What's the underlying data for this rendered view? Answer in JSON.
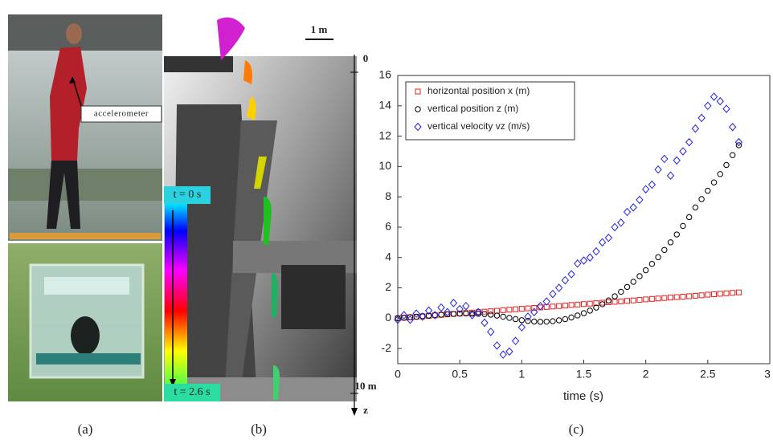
{
  "panels": {
    "a": {
      "annotation": "accelerometer",
      "caption": "(a)"
    },
    "b": {
      "scale_bar": "1 m",
      "depth_top": "0",
      "depth_bottom": "10 m",
      "axis_name": "z",
      "time_start": "t = 0 s",
      "time_end": "t = 2.6 s",
      "caption": "(b)"
    },
    "c": {
      "caption": "(c)"
    }
  },
  "chart_data": {
    "type": "scatter",
    "xlabel": "time (s)",
    "xlim": [
      0,
      3
    ],
    "xticks": [
      0,
      0.5,
      1,
      1.5,
      2,
      2.5,
      3
    ],
    "ylim": [
      -3,
      16
    ],
    "yticks": [
      -2,
      0,
      2,
      4,
      6,
      8,
      10,
      12,
      14,
      16
    ],
    "x": [
      0,
      0.05,
      0.1,
      0.15,
      0.2,
      0.25,
      0.3,
      0.35,
      0.4,
      0.45,
      0.5,
      0.55,
      0.6,
      0.65,
      0.7,
      0.75,
      0.8,
      0.85,
      0.9,
      0.95,
      1,
      1.05,
      1.1,
      1.15,
      1.2,
      1.25,
      1.3,
      1.35,
      1.4,
      1.45,
      1.5,
      1.55,
      1.6,
      1.65,
      1.7,
      1.75,
      1.8,
      1.85,
      1.9,
      1.95,
      2,
      2.05,
      2.1,
      2.15,
      2.2,
      2.25,
      2.3,
      2.35,
      2.4,
      2.45,
      2.5,
      2.55,
      2.6,
      2.65,
      2.7,
      2.75
    ],
    "series": [
      {
        "name": "horizontal position x (m)",
        "color": "#e02020",
        "marker": "square",
        "values": [
          0,
          0.03,
          0.06,
          0.09,
          0.12,
          0.15,
          0.19,
          0.22,
          0.25,
          0.28,
          0.31,
          0.34,
          0.37,
          0.4,
          0.43,
          0.46,
          0.49,
          0.53,
          0.56,
          0.59,
          0.62,
          0.65,
          0.68,
          0.71,
          0.74,
          0.77,
          0.8,
          0.83,
          0.87,
          0.9,
          0.93,
          0.96,
          0.99,
          1.02,
          1.05,
          1.08,
          1.11,
          1.14,
          1.17,
          1.21,
          1.24,
          1.27,
          1.3,
          1.33,
          1.36,
          1.39,
          1.42,
          1.45,
          1.48,
          1.51,
          1.55,
          1.58,
          1.61,
          1.64,
          1.67,
          1.7
        ]
      },
      {
        "name": "vertical position z (m)",
        "color": "#000000",
        "marker": "circle",
        "values": [
          0,
          0.03,
          0.07,
          0.1,
          0.14,
          0.17,
          0.2,
          0.23,
          0.26,
          0.28,
          0.3,
          0.31,
          0.3,
          0.29,
          0.27,
          0.23,
          0.17,
          0.1,
          0.02,
          -0.06,
          -0.13,
          -0.18,
          -0.22,
          -0.24,
          -0.23,
          -0.2,
          -0.14,
          -0.06,
          0.05,
          0.18,
          0.33,
          0.5,
          0.7,
          0.92,
          1.17,
          1.44,
          1.74,
          2.06,
          2.4,
          2.77,
          3.16,
          3.58,
          4.02,
          4.5,
          5,
          5.52,
          6.08,
          6.66,
          7.3,
          7.85,
          8.4,
          8.95,
          9.5,
          10.1,
          10.75,
          11.4
        ]
      },
      {
        "name": "vertical velocity vz (m/s)",
        "color": "#2020e0",
        "marker": "diamond",
        "values": [
          -0.1,
          0.2,
          -0.1,
          0.3,
          0.1,
          0.5,
          0.2,
          0.7,
          0.4,
          1,
          0.6,
          0.8,
          0.2,
          0.4,
          -0.3,
          -0.9,
          -1.8,
          -2.4,
          -2.2,
          -1.5,
          -0.6,
          0.1,
          0.4,
          0.8,
          1.1,
          1.6,
          2,
          2.5,
          2.9,
          3.6,
          3.8,
          4,
          4.4,
          5,
          5.3,
          6,
          6.3,
          7,
          7.3,
          7.8,
          8.5,
          8.8,
          9.8,
          10.5,
          9.4,
          10.4,
          11,
          11.6,
          12.5,
          13.2,
          14,
          14.6,
          14.3,
          13.8,
          12.6,
          11.6
        ]
      }
    ]
  }
}
